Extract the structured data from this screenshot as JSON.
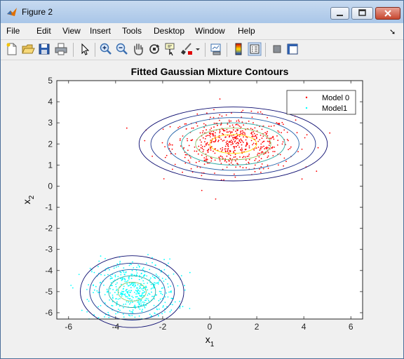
{
  "window": {
    "title": "Figure 2"
  },
  "menu": [
    "File",
    "Edit",
    "View",
    "Insert",
    "Tools",
    "Desktop",
    "Window",
    "Help"
  ],
  "toolbar_icons": [
    "new-figure-icon",
    "open-file-icon",
    "save-icon",
    "print-icon",
    "edit-plot-arrow-icon",
    "zoom-in-icon",
    "zoom-out-icon",
    "pan-hand-icon",
    "rotate-3d-icon",
    "data-cursor-icon",
    "brush-icon",
    "brush-dropdown-icon",
    "link-plot-icon",
    "colorbar-icon",
    "legend-icon",
    "hide-plot-tools-icon",
    "show-plot-tools-icon"
  ],
  "chart_data": {
    "type": "scatter",
    "title": "Fitted Gaussian Mixture Contours",
    "xlabel": "x",
    "xlabel_sub": "1",
    "ylabel": "x",
    "ylabel_sub": "2",
    "xlim": [
      -6.5,
      6.5
    ],
    "ylim": [
      -6.3,
      5
    ],
    "xticks": [
      -6,
      -4,
      -2,
      0,
      2,
      4,
      6
    ],
    "yticks": [
      5,
      4,
      3,
      2,
      1,
      0,
      -1,
      -2,
      -3,
      -4,
      -5,
      -6
    ],
    "grid": false,
    "legend_position": "top-right",
    "series": [
      {
        "name": "Model 0",
        "color": "#ff0000",
        "marker": "point",
        "mean": [
          1.0,
          2.0
        ],
        "std": [
          1.3,
          0.65
        ],
        "n": 600
      },
      {
        "name": "Model1",
        "color": "#00ffff",
        "marker": "point",
        "mean": [
          -3.2,
          -5.0
        ],
        "std": [
          0.9,
          0.75
        ],
        "n": 500
      }
    ],
    "contours": [
      {
        "center": [
          1.0,
          2.0
        ],
        "radii_x": [
          1.0,
          1.6,
          2.2,
          2.8,
          3.5,
          4.0
        ],
        "radii_y": [
          0.45,
          0.75,
          1.0,
          1.25,
          1.5,
          1.75
        ]
      },
      {
        "center": [
          -3.3,
          -5.0
        ],
        "radii_x": [
          0.6,
          1.0,
          1.4,
          1.8,
          2.2
        ],
        "radii_y": [
          0.45,
          0.75,
          1.05,
          1.35,
          1.7
        ]
      }
    ]
  }
}
